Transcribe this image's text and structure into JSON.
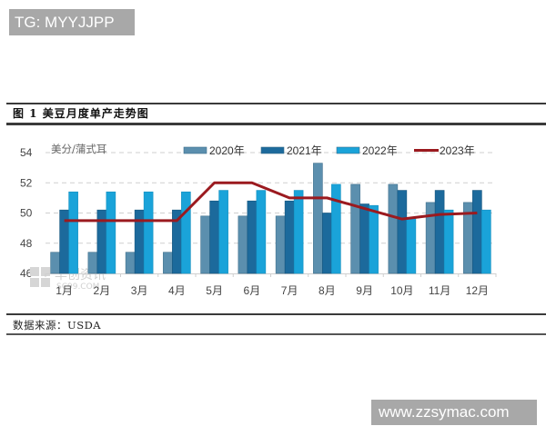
{
  "badges": {
    "top_left": "TG: MYYJJPP",
    "bottom_right": "www.zzsymac.com"
  },
  "caption": "图 1 美豆月度单产走势图",
  "source": "数据来源：USDA",
  "watermark": {
    "line1": "华创资讯",
    "line2": "SC99.COM"
  },
  "colors": {
    "s2020": "#5b8fae",
    "s2021": "#1c6a9c",
    "s2022": "#1aa3d9",
    "s2023": "#9b1a1f",
    "grid": "#cfcfcf",
    "rule": "#3a3a3a"
  },
  "chart_data": {
    "type": "bar",
    "title": "图 1 美豆月度单产走势图",
    "ylabel": "美分/蒲式耳",
    "xlabel": "",
    "ylim": [
      46,
      54
    ],
    "yticks": [
      46,
      48,
      50,
      52,
      54
    ],
    "grid": true,
    "legend_position": "top",
    "categories": [
      "1月",
      "2月",
      "3月",
      "4月",
      "5月",
      "6月",
      "7月",
      "8月",
      "9月",
      "10月",
      "11月",
      "12月"
    ],
    "series": [
      {
        "name": "2020年",
        "type": "bar",
        "values": [
          47.4,
          47.4,
          47.4,
          47.4,
          49.8,
          49.8,
          49.8,
          53.3,
          51.9,
          51.9,
          50.7,
          50.7
        ]
      },
      {
        "name": "2021年",
        "type": "bar",
        "values": [
          50.2,
          50.2,
          50.2,
          50.2,
          50.8,
          50.8,
          50.8,
          50.0,
          50.6,
          51.5,
          51.5,
          51.5
        ]
      },
      {
        "name": "2022年",
        "type": "bar",
        "values": [
          51.4,
          51.4,
          51.4,
          51.4,
          51.5,
          51.5,
          51.5,
          51.9,
          50.5,
          49.7,
          50.2,
          50.2
        ]
      },
      {
        "name": "2023年",
        "type": "line",
        "values": [
          49.5,
          49.5,
          49.5,
          49.5,
          52.0,
          52.0,
          51.0,
          51.0,
          50.3,
          49.6,
          49.9,
          50.0
        ]
      }
    ],
    "annotations": [
      "数据来源：USDA"
    ]
  }
}
